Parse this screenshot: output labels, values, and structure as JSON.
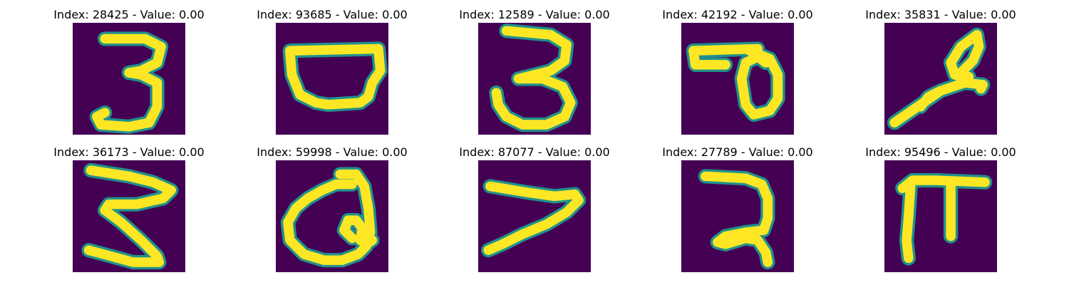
{
  "figure": {
    "background_color": "#440154",
    "stroke_color": "#fde725",
    "edge_color": "#21918c",
    "panels": [
      {
        "title": "Index: 28425 - Value: 0.00",
        "digit": "3"
      },
      {
        "title": "Index: 93685 - Value: 0.00",
        "digit": "bowl"
      },
      {
        "title": "Index: 12589 - Value: 0.00",
        "digit": "3-hooked"
      },
      {
        "title": "Index: 42192 - Value: 0.00",
        "digit": "loop-bar"
      },
      {
        "title": "Index: 35831 - Value: 0.00",
        "digit": "slanted-loop"
      },
      {
        "title": "Index: 36173 - Value: 0.00",
        "digit": "3-angular"
      },
      {
        "title": "Index: 59998 - Value: 0.00",
        "digit": "loop-curl"
      },
      {
        "title": "Index: 87077 - Value: 0.00",
        "digit": "7-slanted"
      },
      {
        "title": "Index: 27789 - Value: 0.00",
        "digit": "2-hook"
      },
      {
        "title": "Index: 95496 - Value: 0.00",
        "digit": "pi"
      }
    ]
  }
}
